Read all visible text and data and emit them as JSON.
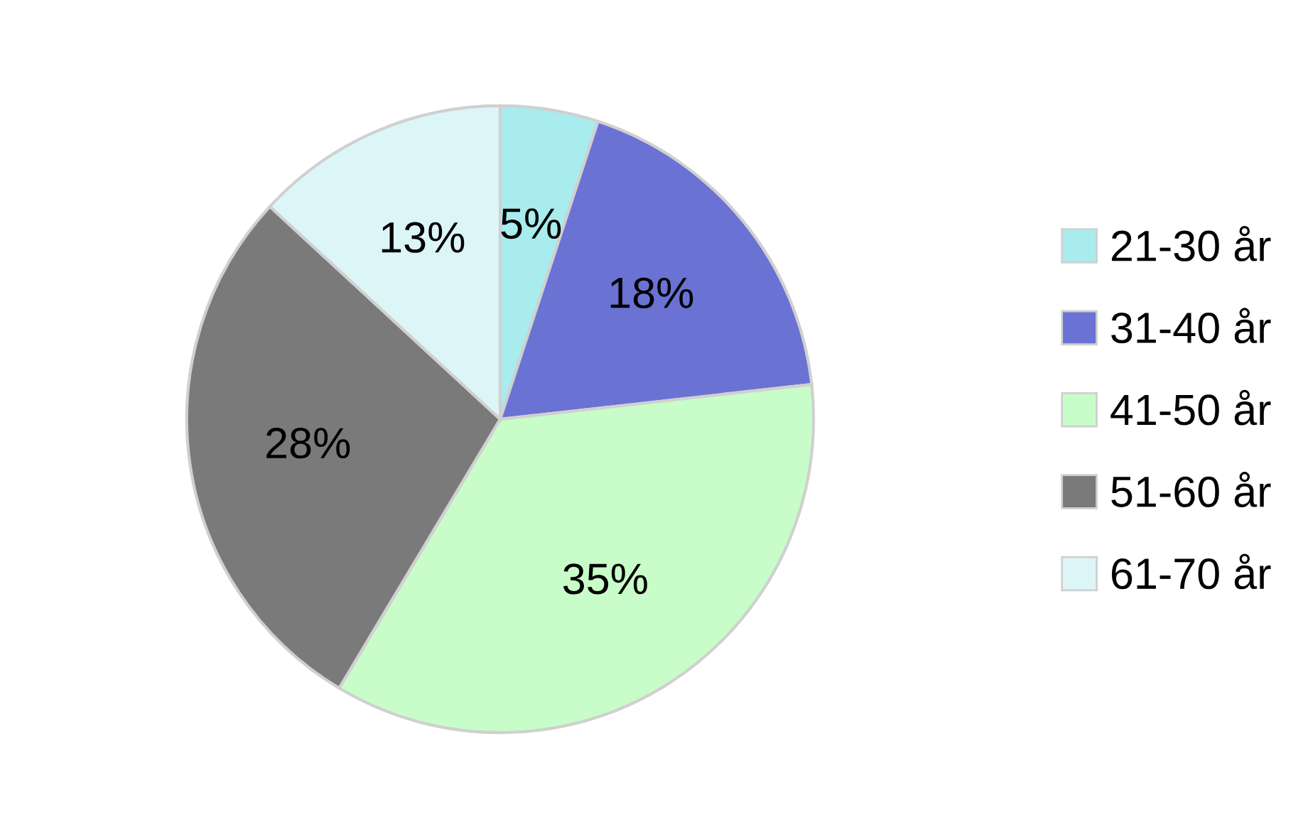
{
  "chart_data": {
    "type": "pie",
    "categories": [
      "21-30 år",
      "31-40 år",
      "41-50 år",
      "51-60 år",
      "61-70 år"
    ],
    "values": [
      5,
      18,
      35,
      28,
      13
    ],
    "value_labels": [
      "5%",
      "18%",
      "35%",
      "28%",
      "13%"
    ],
    "colors": [
      "#a8ecee",
      "#6a72d4",
      "#c8fcc8",
      "#7a7a7a",
      "#dcf6f8"
    ],
    "legend": "right"
  }
}
